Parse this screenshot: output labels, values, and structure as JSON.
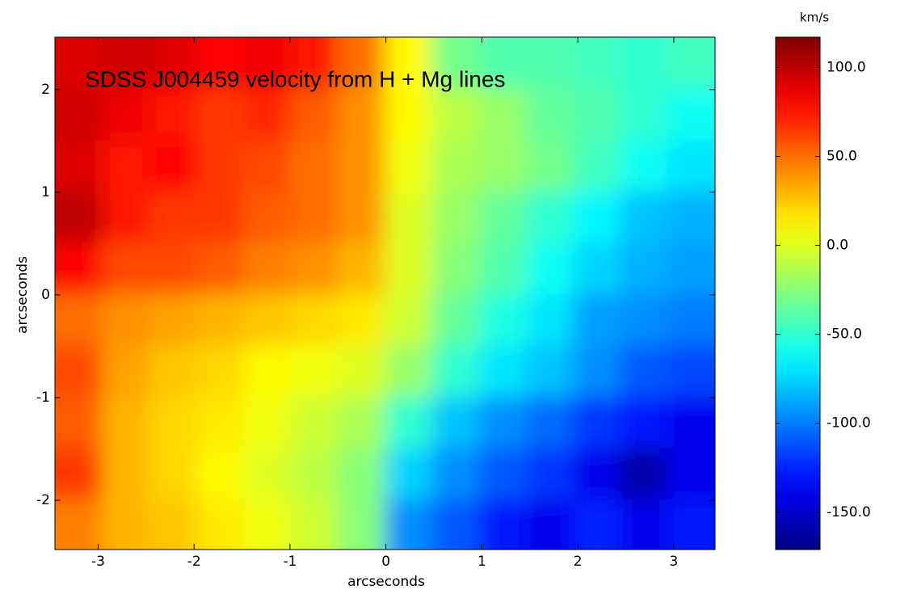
{
  "chart_data": {
    "type": "heatmap",
    "title": "SDSS J004459 velocity from H + Mg lines",
    "xlabel": "arcseconds",
    "ylabel": "arcseconds",
    "colorbar_label": "km/s",
    "colormap": "jet",
    "x": [
      -3.2,
      -2.71,
      -2.22,
      -1.73,
      -1.24,
      -0.75,
      -0.26,
      0.23,
      0.72,
      1.21,
      1.7,
      2.19,
      2.68,
      3.17
    ],
    "y": [
      2.26,
      1.76,
      1.26,
      0.76,
      0.26,
      -0.24,
      -0.74,
      -1.24,
      -1.74,
      -2.24
    ],
    "values": [
      [
        90,
        95,
        90,
        80,
        85,
        75,
        50,
        10,
        -30,
        -40,
        -40,
        -45,
        -50,
        -45
      ],
      [
        95,
        85,
        75,
        65,
        70,
        55,
        40,
        10,
        -10,
        -20,
        -35,
        -40,
        -50,
        -60
      ],
      [
        90,
        75,
        80,
        65,
        60,
        50,
        40,
        5,
        -15,
        -20,
        -30,
        -45,
        -60,
        -70
      ],
      [
        100,
        75,
        65,
        65,
        55,
        50,
        40,
        0,
        -20,
        -35,
        -50,
        -65,
        -80,
        -85
      ],
      [
        80,
        60,
        60,
        55,
        45,
        40,
        30,
        0,
        -25,
        -40,
        -60,
        -75,
        -85,
        -90
      ],
      [
        50,
        40,
        35,
        30,
        25,
        20,
        15,
        -5,
        -35,
        -55,
        -70,
        -90,
        -95,
        -100
      ],
      [
        60,
        35,
        25,
        20,
        10,
        5,
        0,
        -20,
        -50,
        -70,
        -80,
        -95,
        -110,
        -115
      ],
      [
        55,
        30,
        20,
        15,
        5,
        -5,
        -15,
        -50,
        -80,
        -95,
        -105,
        -120,
        -130,
        -140
      ],
      [
        65,
        30,
        20,
        10,
        0,
        -10,
        -25,
        -75,
        -95,
        -110,
        -120,
        -140,
        -160,
        -140
      ],
      [
        45,
        30,
        25,
        15,
        5,
        -5,
        -25,
        -95,
        -110,
        -130,
        -140,
        -125,
        -140,
        -130
      ]
    ],
    "xlim": [
      -3.45,
      3.43
    ],
    "ylim": [
      -2.48,
      2.51
    ],
    "xticks": [
      -3,
      -2,
      -1,
      0,
      1,
      2,
      3
    ],
    "yticks": [
      -2,
      -1,
      0,
      1,
      2
    ],
    "clim": [
      -171,
      117
    ],
    "cticks": [
      {
        "value": -150,
        "label": "-150.0"
      },
      {
        "value": -100,
        "label": "-100.0"
      },
      {
        "value": -50,
        "label": "-50.0"
      },
      {
        "value": 0,
        "label": "0.0"
      },
      {
        "value": 50,
        "label": "50.0"
      },
      {
        "value": 100,
        "label": "100.0"
      }
    ]
  }
}
